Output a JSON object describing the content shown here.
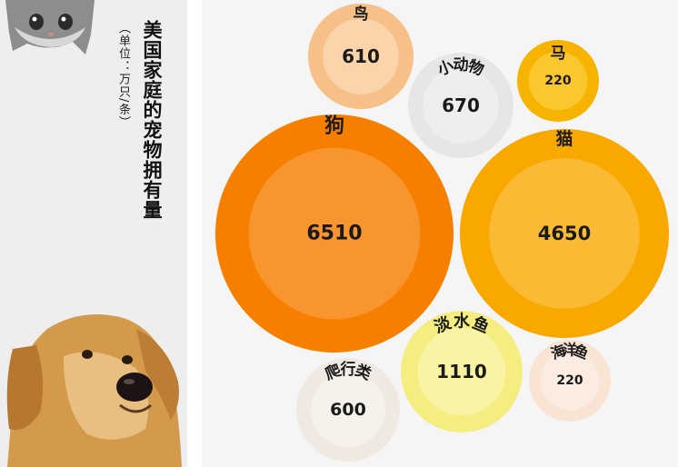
{
  "title": "美国家庭的宠物拥有量",
  "unit": "（单位：万只/条）",
  "chart_data": {
    "type": "bubble",
    "unit": "万只/条",
    "series": [
      {
        "name": "狗",
        "value": 6510,
        "outer": "#f77f00",
        "inner": "#f9952e"
      },
      {
        "name": "猫",
        "value": 4650,
        "outer": "#f9a800",
        "inner": "#fbba33"
      },
      {
        "name": "淡水鱼",
        "value": 1110,
        "outer": "#f6ed80",
        "inner": "#f9f3a6"
      },
      {
        "name": "小动物",
        "value": 670,
        "outer": "#e6e6e6",
        "inner": "#eeeeee"
      },
      {
        "name": "鸟",
        "value": 610,
        "outer": "#f8c089",
        "inner": "#fbd4ab"
      },
      {
        "name": "爬行类",
        "value": 600,
        "outer": "#efe9e1",
        "inner": "#f5f1eb"
      },
      {
        "name": "马",
        "value": 220,
        "outer": "#f6b300",
        "inner": "#fbc72e"
      },
      {
        "name": "海洋鱼",
        "value": 220,
        "outer": "#f9e3d3",
        "inner": "#fbece1"
      }
    ]
  }
}
